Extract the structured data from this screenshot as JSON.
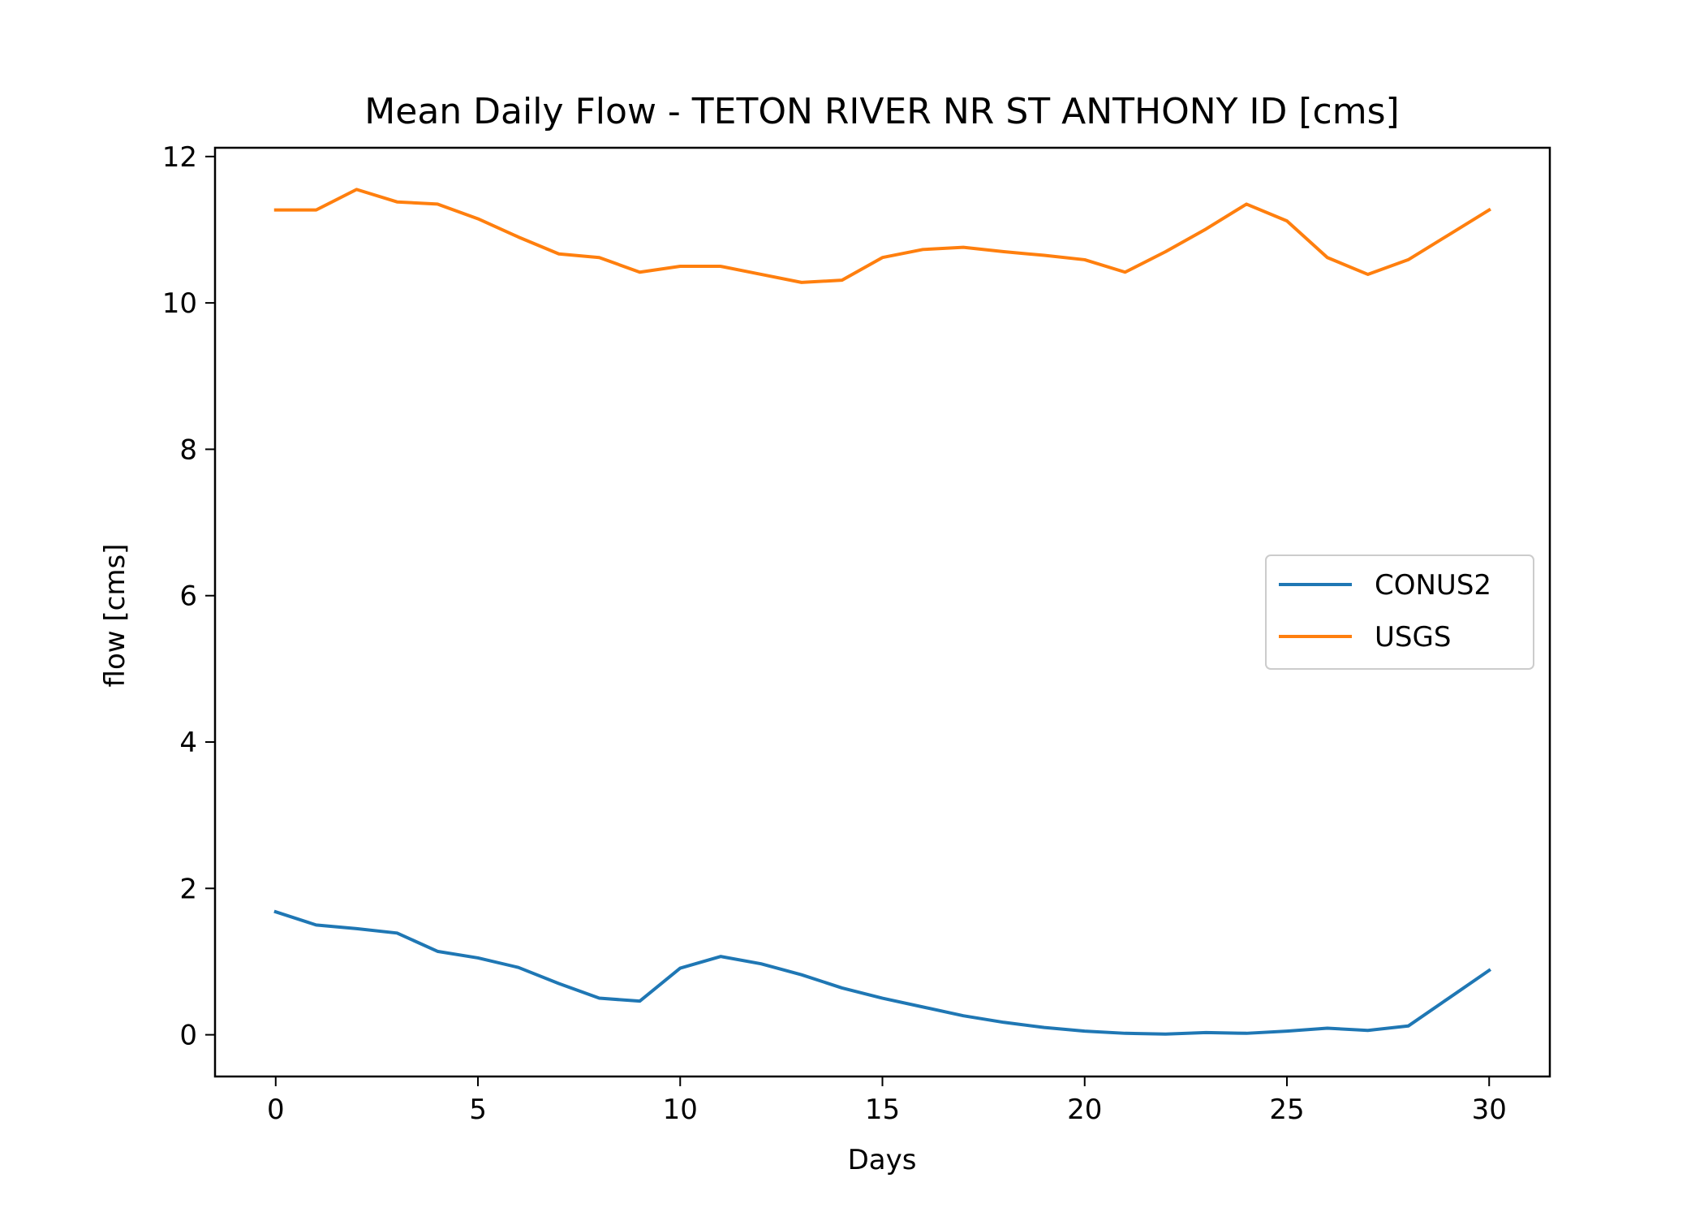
{
  "chart_data": {
    "type": "line",
    "title": "Mean Daily Flow - TETON RIVER NR ST ANTHONY ID [cms]",
    "xlabel": "Days",
    "ylabel": "flow [cms]",
    "xlim": [
      -1.5,
      31.5
    ],
    "ylim": [
      -0.57,
      12.12
    ],
    "xticks": [
      0,
      5,
      10,
      15,
      20,
      25,
      30
    ],
    "yticks": [
      0,
      2,
      4,
      6,
      8,
      10,
      12
    ],
    "xtick_labels": [
      "0",
      "5",
      "10",
      "15",
      "20",
      "25",
      "30"
    ],
    "ytick_labels": [
      "0",
      "2",
      "4",
      "6",
      "8",
      "10",
      "12"
    ],
    "grid": false,
    "legend_position": "center-right",
    "x": [
      0,
      1,
      2,
      3,
      4,
      5,
      6,
      7,
      8,
      9,
      10,
      11,
      12,
      13,
      14,
      15,
      16,
      17,
      18,
      19,
      20,
      21,
      22,
      23,
      24,
      25,
      26,
      27,
      28,
      29,
      30
    ],
    "series": [
      {
        "name": "CONUS2",
        "color": "#1f77b4",
        "values": [
          1.68,
          1.5,
          1.45,
          1.39,
          1.14,
          1.05,
          0.92,
          0.7,
          0.5,
          0.46,
          0.91,
          1.07,
          0.97,
          0.82,
          0.64,
          0.5,
          0.38,
          0.26,
          0.17,
          0.1,
          0.05,
          0.02,
          0.01,
          0.03,
          0.02,
          0.05,
          0.09,
          0.06,
          0.12,
          0.5,
          0.88
        ]
      },
      {
        "name": "USGS",
        "color": "#ff7f0e",
        "values": [
          11.27,
          11.27,
          11.55,
          11.38,
          11.35,
          11.15,
          10.9,
          10.67,
          10.62,
          10.42,
          10.5,
          10.5,
          10.39,
          10.28,
          10.31,
          10.62,
          10.73,
          10.76,
          10.7,
          10.65,
          10.59,
          10.42,
          10.7,
          11.01,
          11.35,
          11.12,
          10.62,
          10.39,
          10.59,
          10.93,
          11.27
        ]
      }
    ]
  }
}
